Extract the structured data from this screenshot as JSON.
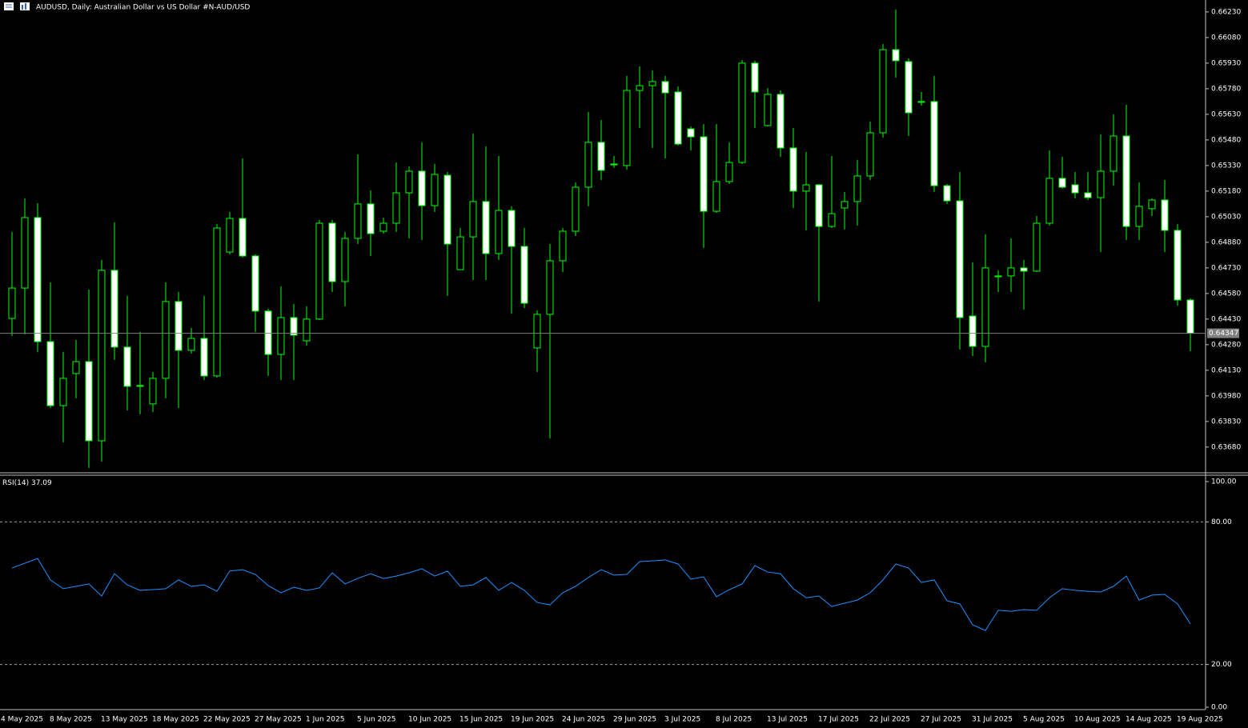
{
  "chart_data": [
    {
      "type": "candlestick",
      "title": "AUDUSD, Daily:  Australian Dollar vs US Dollar #N-AUD/USD",
      "categories": [
        "4 May 2025",
        null,
        null,
        "8 May 2025",
        null,
        null,
        null,
        "13 May 2025",
        null,
        null,
        null,
        "18 May 2025",
        null,
        null,
        null,
        "22 May 2025",
        null,
        null,
        null,
        "27 May 2025",
        null,
        null,
        null,
        "1 Jun 2025",
        null,
        null,
        null,
        "5 Jun 2025",
        null,
        null,
        null,
        "10 Jun 2025",
        null,
        null,
        null,
        "15 Jun 2025",
        null,
        null,
        null,
        "19 Jun 2025",
        null,
        null,
        null,
        "24 Jun 2025",
        null,
        null,
        null,
        "29 Jun 2025",
        null,
        null,
        null,
        "3 Jul 2025",
        null,
        null,
        null,
        "8 Jul 2025",
        null,
        null,
        null,
        "13 Jul 2025",
        null,
        null,
        null,
        "17 Jul 2025",
        null,
        null,
        null,
        "22 Jul 2025",
        null,
        null,
        null,
        "27 Jul 2025",
        null,
        null,
        null,
        "31 Jul 2025",
        null,
        null,
        null,
        "5 Aug 2025",
        null,
        null,
        null,
        "10 Aug 2025",
        null,
        null,
        null,
        "14 Aug 2025",
        null,
        null,
        null,
        "19 Aug 2025",
        null
      ],
      "open": [
        0.64434,
        0.64612,
        0.65025,
        0.64298,
        0.63923,
        0.64111,
        0.64181,
        0.63717,
        0.64716,
        0.64266,
        0.64041,
        0.63933,
        0.64083,
        0.64533,
        0.64247,
        0.64317,
        0.64097,
        0.64823,
        0.6502,
        0.648,
        0.64477,
        0.64223,
        0.64439,
        0.64303,
        0.6443,
        0.64992,
        0.6465,
        0.64903,
        0.65105,
        0.64945,
        0.64992,
        0.6517,
        0.65297,
        0.65095,
        0.65273,
        0.6472,
        0.64912,
        0.65119,
        0.64814,
        0.65067,
        0.64856,
        0.64261,
        0.64458,
        0.64772,
        0.64945,
        0.65203,
        0.65466,
        0.65339,
        0.6533,
        0.6577,
        0.65798,
        0.65822,
        0.65761,
        0.65545,
        0.65498,
        0.65062,
        0.65236,
        0.65348,
        0.6593,
        0.65564,
        0.65747,
        0.65433,
        0.6518,
        0.65217,
        0.64973,
        0.65081,
        0.65119,
        0.65269,
        0.65522,
        0.66009,
        0.65939,
        0.65705,
        0.65705,
        0.65212,
        0.65123,
        0.64448,
        0.6427,
        0.64678,
        0.64683,
        0.6473,
        0.64711,
        0.64992,
        0.65255,
        0.65217,
        0.6517,
        0.65142,
        0.65297,
        0.65503,
        0.64973,
        0.65077,
        0.65128,
        0.6495,
        0.64542
      ],
      "high": [
        0.64941,
        0.65137,
        0.65109,
        0.64645,
        0.64237,
        0.64308,
        0.64603,
        0.64777,
        0.64997,
        0.64566,
        0.64355,
        0.6412,
        0.64645,
        0.64589,
        0.64378,
        0.64566,
        0.64987,
        0.65058,
        0.65372,
        0.64809,
        0.64491,
        0.64622,
        0.64519,
        0.64505,
        0.65011,
        0.65011,
        0.64941,
        0.65395,
        0.65184,
        0.65025,
        0.65348,
        0.65325,
        0.65466,
        0.65339,
        0.65292,
        0.64964,
        0.65517,
        0.65442,
        0.65386,
        0.65091,
        0.64964,
        0.64481,
        0.6487,
        0.64964,
        0.65231,
        0.65644,
        0.65597,
        0.65386,
        0.65855,
        0.65911,
        0.65887,
        0.65855,
        0.65794,
        0.65559,
        0.65573,
        0.65573,
        0.65466,
        0.65948,
        0.65944,
        0.65784,
        0.6577,
        0.6555,
        0.65409,
        0.65222,
        0.65386,
        0.65175,
        0.65362,
        0.65587,
        0.66042,
        0.66244,
        0.65958,
        0.65761,
        0.65855,
        0.65222,
        0.65292,
        0.64762,
        0.64927,
        0.64716,
        0.64903,
        0.64777,
        0.65034,
        0.65419,
        0.65381,
        0.65292,
        0.65292,
        0.65512,
        0.6563,
        0.65686,
        0.65231,
        0.65137,
        0.65245,
        0.64987,
        0.64552
      ],
      "low": [
        0.64331,
        0.64341,
        0.64237,
        0.63909,
        0.63708,
        0.63966,
        0.63558,
        0.63595,
        0.64191,
        0.63895,
        0.63872,
        0.63886,
        0.63966,
        0.63909,
        0.64228,
        0.64073,
        0.64087,
        0.64809,
        0.64791,
        0.64355,
        0.64097,
        0.64073,
        0.64073,
        0.64275,
        0.64425,
        0.64589,
        0.64505,
        0.6487,
        0.648,
        0.64931,
        0.64941,
        0.64903,
        0.64894,
        0.65058,
        0.64566,
        0.6472,
        0.64659,
        0.64659,
        0.64777,
        0.64462,
        0.64495,
        0.6412,
        0.63731,
        0.64706,
        0.64917,
        0.65091,
        0.65245,
        0.65316,
        0.65306,
        0.6555,
        0.65433,
        0.65372,
        0.65447,
        0.65419,
        0.64847,
        0.65053,
        0.65222,
        0.65339,
        0.6555,
        0.65559,
        0.65381,
        0.65081,
        0.6495,
        0.64533,
        0.64964,
        0.64955,
        0.64978,
        0.65245,
        0.65494,
        0.65845,
        0.65503,
        0.65681,
        0.65175,
        0.65105,
        0.64252,
        0.64214,
        0.64177,
        0.64589,
        0.64589,
        0.64486,
        0.64706,
        0.64978,
        0.65194,
        0.65137,
        0.65128,
        0.64823,
        0.65212,
        0.64894,
        0.64894,
        0.65034,
        0.64823,
        0.64509,
        0.64242
      ],
      "close": [
        0.64612,
        0.65025,
        0.64298,
        0.63923,
        0.64083,
        0.64181,
        0.63717,
        0.64716,
        0.64266,
        0.64036,
        0.64036,
        0.64083,
        0.64533,
        0.64247,
        0.64317,
        0.64097,
        0.64964,
        0.6502,
        0.648,
        0.64477,
        0.64223,
        0.64439,
        0.64336,
        0.6443,
        0.64992,
        0.6465,
        0.64903,
        0.65105,
        0.64931,
        0.64992,
        0.6517,
        0.65297,
        0.65095,
        0.65278,
        0.6487,
        0.64912,
        0.65119,
        0.64814,
        0.65067,
        0.64856,
        0.64523,
        0.64458,
        0.64772,
        0.64945,
        0.65203,
        0.65466,
        0.65302,
        0.65334,
        0.6577,
        0.65798,
        0.65822,
        0.65756,
        0.65456,
        0.65498,
        0.65062,
        0.65236,
        0.65348,
        0.6593,
        0.65761,
        0.65747,
        0.65433,
        0.6518,
        0.65217,
        0.64973,
        0.65048,
        0.65119,
        0.65269,
        0.65522,
        0.66009,
        0.65944,
        0.65639,
        0.65705,
        0.65212,
        0.65123,
        0.64439,
        0.6427,
        0.6473,
        0.64683,
        0.6473,
        0.64711,
        0.64992,
        0.65255,
        0.65203,
        0.6517,
        0.65142,
        0.65297,
        0.65503,
        0.64973,
        0.65091,
        0.65128,
        0.6495,
        0.64542,
        0.64347
      ],
      "color": "#00ff00",
      "up_fill": "#000000",
      "down_fill": "#ffffff",
      "ylim": [
        0.63534,
        0.663
      ],
      "yticks": [
        {
          "value": 0.6623,
          "label": "0.66230"
        },
        {
          "value": 0.6608,
          "label": "0.66080"
        },
        {
          "value": 0.6593,
          "label": "0.65930"
        },
        {
          "value": 0.6578,
          "label": "0.65780"
        },
        {
          "value": 0.6563,
          "label": "0.65630"
        },
        {
          "value": 0.6548,
          "label": "0.65480"
        },
        {
          "value": 0.6533,
          "label": "0.65330"
        },
        {
          "value": 0.6518,
          "label": "0.65180"
        },
        {
          "value": 0.6503,
          "label": "0.65030"
        },
        {
          "value": 0.6488,
          "label": "0.64880"
        },
        {
          "value": 0.6473,
          "label": "0.64730"
        },
        {
          "value": 0.6458,
          "label": "0.64580"
        },
        {
          "value": 0.6443,
          "label": "0.64430"
        },
        {
          "value": 0.6428,
          "label": "0.64280"
        },
        {
          "value": 0.6413,
          "label": "0.64130"
        },
        {
          "value": 0.6398,
          "label": "0.63980"
        },
        {
          "value": 0.6383,
          "label": "0.63830"
        },
        {
          "value": 0.6368,
          "label": "0.63680"
        }
      ]
    },
    {
      "type": "line",
      "title": "RSI(14)",
      "color": "#1e90ff",
      "values": [
        60.6,
        62.6,
        64.6,
        55.6,
        51.9,
        52.9,
        53.9,
        48.8,
        58.2,
        53.5,
        51.2,
        51.5,
        51.9,
        55.6,
        52.9,
        53.5,
        50.8,
        59.3,
        59.9,
        57.9,
        53.2,
        50.2,
        52.5,
        51.2,
        52.2,
        58.6,
        53.9,
        56.2,
        58.2,
        56.2,
        57.2,
        58.6,
        60.3,
        57.2,
        59.3,
        52.9,
        53.5,
        56.6,
        51.2,
        54.5,
        51.2,
        46.1,
        45.1,
        50.2,
        52.9,
        56.6,
        59.9,
        57.6,
        57.9,
        63.3,
        63.6,
        64,
        62.3,
        55.9,
        56.9,
        48.5,
        51.5,
        53.9,
        61.6,
        58.9,
        58.2,
        51.9,
        48.1,
        48.8,
        44.4,
        45.8,
        47.1,
        50.2,
        55.6,
        62.3,
        60.6,
        54.5,
        55.6,
        46.8,
        45.5,
        36.7,
        34.3,
        42.8,
        42.4,
        43.1,
        42.8,
        48.1,
        51.9,
        51.2,
        50.8,
        50.5,
        52.9,
        57.2,
        47.1,
        49.2,
        49.5,
        45.5,
        37.09
      ],
      "ylim": [
        0,
        100
      ],
      "yticks": [
        {
          "value": 100,
          "label": "100.00"
        },
        {
          "value": 80,
          "label": "80.00"
        },
        {
          "value": 20,
          "label": "20.00"
        },
        {
          "value": 0,
          "label": "0.00"
        }
      ]
    }
  ]
}
